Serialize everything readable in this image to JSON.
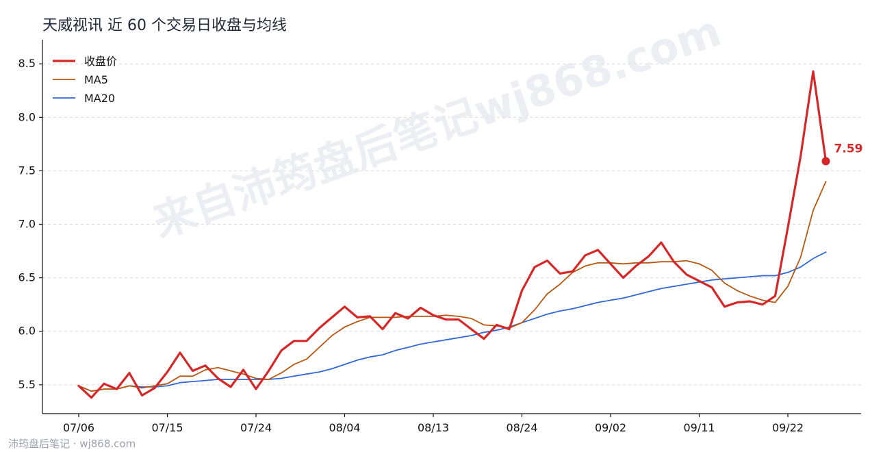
{
  "chart_data": {
    "type": "line",
    "title": "天威视讯 近 60 个交易日收盘与均线",
    "xlabel": "",
    "ylabel": "",
    "ylim": [
      5.23,
      8.7
    ],
    "yticks": [
      5.5,
      6.0,
      6.5,
      7.0,
      7.5,
      8.0,
      8.5
    ],
    "ytick_labels": [
      "5.5",
      "6.0",
      "6.5",
      "7.0",
      "7.5",
      "8.0",
      "8.5"
    ],
    "xtick_index": [
      0,
      7,
      14,
      21,
      28,
      35,
      42,
      49,
      56
    ],
    "xtick_labels": [
      "07/06",
      "07/15",
      "07/24",
      "08/04",
      "08/13",
      "08/24",
      "09/02",
      "09/11",
      "09/22"
    ],
    "grid": "horizontal",
    "legend_position": "top-left",
    "series": [
      {
        "name": "收盘价",
        "color": "#d62728",
        "values": [
          5.49,
          5.38,
          5.51,
          5.46,
          5.61,
          5.4,
          5.47,
          5.62,
          5.8,
          5.63,
          5.68,
          5.56,
          5.48,
          5.64,
          5.46,
          5.63,
          5.82,
          5.91,
          5.91,
          6.03,
          6.13,
          6.23,
          6.13,
          6.14,
          6.02,
          6.17,
          6.12,
          6.22,
          6.15,
          6.11,
          6.11,
          6.02,
          5.93,
          6.06,
          6.02,
          6.38,
          6.6,
          6.66,
          6.54,
          6.56,
          6.71,
          6.76,
          6.63,
          6.5,
          6.61,
          6.7,
          6.83,
          6.65,
          6.53,
          6.47,
          6.41,
          6.23,
          6.27,
          6.28,
          6.25,
          6.33,
          6.97,
          7.63,
          8.43,
          7.59
        ]
      },
      {
        "name": "MA5",
        "color": "#b8560f",
        "values": [
          5.49,
          5.44,
          5.46,
          5.46,
          5.49,
          5.47,
          5.49,
          5.51,
          5.58,
          5.58,
          5.64,
          5.66,
          5.63,
          5.6,
          5.56,
          5.55,
          5.61,
          5.69,
          5.74,
          5.85,
          5.96,
          6.04,
          6.09,
          6.13,
          6.13,
          6.13,
          6.14,
          6.14,
          6.14,
          6.15,
          6.14,
          6.12,
          6.06,
          6.05,
          6.03,
          6.08,
          6.2,
          6.35,
          6.44,
          6.55,
          6.61,
          6.64,
          6.64,
          6.63,
          6.64,
          6.64,
          6.65,
          6.65,
          6.66,
          6.63,
          6.57,
          6.45,
          6.38,
          6.33,
          6.29,
          6.27,
          6.42,
          6.69,
          7.13,
          7.4
        ]
      },
      {
        "name": "MA20",
        "color": "#2f67d8",
        "values": [
          5.49,
          5.44,
          5.46,
          5.46,
          5.49,
          5.48,
          5.48,
          5.49,
          5.52,
          5.53,
          5.54,
          5.55,
          5.55,
          5.55,
          5.55,
          5.55,
          5.56,
          5.58,
          5.6,
          5.62,
          5.65,
          5.69,
          5.73,
          5.76,
          5.78,
          5.82,
          5.85,
          5.88,
          5.9,
          5.92,
          5.94,
          5.96,
          5.99,
          6.01,
          6.04,
          6.08,
          6.12,
          6.16,
          6.19,
          6.21,
          6.24,
          6.27,
          6.29,
          6.31,
          6.34,
          6.37,
          6.4,
          6.42,
          6.44,
          6.46,
          6.48,
          6.49,
          6.5,
          6.51,
          6.52,
          6.52,
          6.55,
          6.6,
          6.68,
          6.74
        ]
      }
    ],
    "last_value_label": "7.59",
    "watermark": "来自沛筠盘后笔记wj868.com",
    "footer": "沛筠盘后笔记 · wj868.com"
  }
}
